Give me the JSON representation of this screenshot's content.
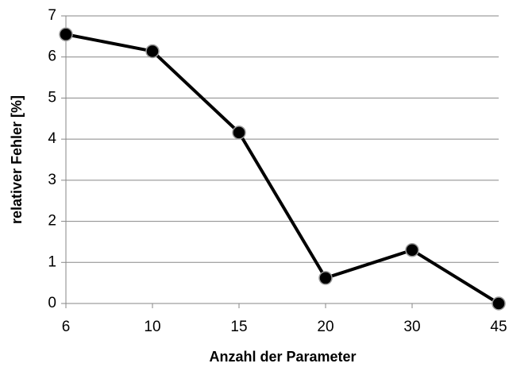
{
  "chart_data": {
    "type": "line",
    "x_label": "Anzahl der Parameter",
    "y_label": "relativer Fehler [%]",
    "categories": [
      "6",
      "10",
      "15",
      "20",
      "30",
      "45"
    ],
    "series": [
      {
        "name": "relativer Fehler",
        "color": "#000000",
        "values": [
          6.55,
          6.14,
          4.16,
          0.62,
          1.3,
          0.0
        ]
      }
    ],
    "ylim": [
      0,
      7
    ],
    "yticks": [
      0,
      1,
      2,
      3,
      4,
      5,
      6,
      7
    ],
    "grid": true
  }
}
